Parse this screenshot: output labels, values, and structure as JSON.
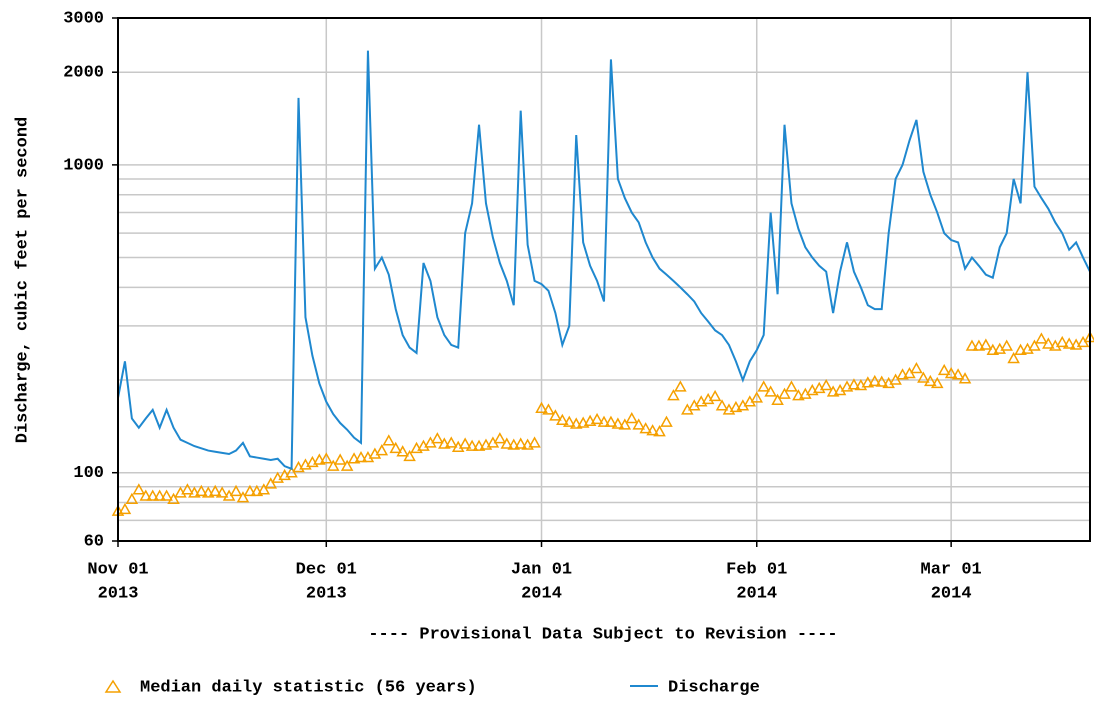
{
  "chart_data": {
    "type": "line",
    "y_label": "Discharge, cubic feet per second",
    "annotation": "---- Provisional Data Subject to Revision ----",
    "annotation_color": "#ff0000",
    "log_y": true,
    "grid": true,
    "legend": "bottom",
    "xlim": [
      "2013-11-01",
      "2014-03-21"
    ],
    "xticks": [
      {
        "value": "2013-11-01",
        "label": [
          "Nov 01",
          "2013"
        ]
      },
      {
        "value": "2013-12-01",
        "label": [
          "Dec 01",
          "2013"
        ]
      },
      {
        "value": "2014-01-01",
        "label": [
          "Jan 01",
          "2014"
        ]
      },
      {
        "value": "2014-02-01",
        "label": [
          "Feb 01",
          "2014"
        ]
      },
      {
        "value": "2014-03-01",
        "label": [
          "Mar 01",
          "2014"
        ]
      }
    ],
    "ylim": [
      60,
      3000
    ],
    "yticks": [
      60,
      100,
      1000,
      2000,
      3000
    ],
    "y_minor_gridlines": [
      70,
      80,
      90,
      200,
      300,
      400,
      500,
      600,
      700,
      800,
      900
    ],
    "x": [
      "2013-11-01",
      "2013-11-02",
      "2013-11-03",
      "2013-11-04",
      "2013-11-05",
      "2013-11-06",
      "2013-11-07",
      "2013-11-08",
      "2013-11-09",
      "2013-11-10",
      "2013-11-11",
      "2013-11-12",
      "2013-11-13",
      "2013-11-14",
      "2013-11-15",
      "2013-11-16",
      "2013-11-17",
      "2013-11-18",
      "2013-11-19",
      "2013-11-20",
      "2013-11-21",
      "2013-11-22",
      "2013-11-23",
      "2013-11-24",
      "2013-11-25",
      "2013-11-26",
      "2013-11-27",
      "2013-11-28",
      "2013-11-29",
      "2013-11-30",
      "2013-12-01",
      "2013-12-02",
      "2013-12-03",
      "2013-12-04",
      "2013-12-05",
      "2013-12-06",
      "2013-12-07",
      "2013-12-08",
      "2013-12-09",
      "2013-12-10",
      "2013-12-11",
      "2013-12-12",
      "2013-12-13",
      "2013-12-14",
      "2013-12-15",
      "2013-12-16",
      "2013-12-17",
      "2013-12-18",
      "2013-12-19",
      "2013-12-20",
      "2013-12-21",
      "2013-12-22",
      "2013-12-23",
      "2013-12-24",
      "2013-12-25",
      "2013-12-26",
      "2013-12-27",
      "2013-12-28",
      "2013-12-29",
      "2013-12-30",
      "2013-12-31",
      "2014-01-01",
      "2014-01-02",
      "2014-01-03",
      "2014-01-04",
      "2014-01-05",
      "2014-01-06",
      "2014-01-07",
      "2014-01-08",
      "2014-01-09",
      "2014-01-10",
      "2014-01-11",
      "2014-01-12",
      "2014-01-13",
      "2014-01-14",
      "2014-01-15",
      "2014-01-16",
      "2014-01-17",
      "2014-01-18",
      "2014-01-19",
      "2014-01-20",
      "2014-01-21",
      "2014-01-22",
      "2014-01-23",
      "2014-01-24",
      "2014-01-25",
      "2014-01-26",
      "2014-01-27",
      "2014-01-28",
      "2014-01-29",
      "2014-01-30",
      "2014-01-31",
      "2014-02-01",
      "2014-02-02",
      "2014-02-03",
      "2014-02-04",
      "2014-02-05",
      "2014-02-06",
      "2014-02-07",
      "2014-02-08",
      "2014-02-09",
      "2014-02-10",
      "2014-02-11",
      "2014-02-12",
      "2014-02-13",
      "2014-02-14",
      "2014-02-15",
      "2014-02-16",
      "2014-02-17",
      "2014-02-18",
      "2014-02-19",
      "2014-02-20",
      "2014-02-21",
      "2014-02-22",
      "2014-02-23",
      "2014-02-24",
      "2014-02-25",
      "2014-02-26",
      "2014-02-27",
      "2014-02-28",
      "2014-03-01",
      "2014-03-02",
      "2014-03-03",
      "2014-03-04",
      "2014-03-05",
      "2014-03-06",
      "2014-03-07",
      "2014-03-08",
      "2014-03-09",
      "2014-03-10",
      "2014-03-11",
      "2014-03-12",
      "2014-03-13",
      "2014-03-14",
      "2014-03-15",
      "2014-03-16",
      "2014-03-17",
      "2014-03-18",
      "2014-03-19",
      "2014-03-20",
      "2014-03-21"
    ],
    "series": [
      {
        "name": "Median daily statistic (56 years)",
        "color": "#f5a000",
        "marker": "triangle",
        "values": [
          75,
          76,
          82,
          88,
          84,
          84,
          84,
          84,
          82,
          86,
          88,
          86,
          87,
          86,
          87,
          86,
          84,
          87,
          83,
          87,
          87,
          88,
          92,
          96,
          98,
          100,
          104,
          106,
          108,
          110,
          111,
          105,
          110,
          105,
          111,
          112,
          112,
          115,
          118,
          127,
          120,
          117,
          113,
          120,
          122,
          125,
          129,
          124,
          125,
          121,
          124,
          122,
          122,
          123,
          125,
          129,
          124,
          123,
          124,
          123,
          125,
          162,
          160,
          153,
          148,
          146,
          144,
          145,
          147,
          149,
          146,
          146,
          144,
          143,
          150,
          143,
          139,
          137,
          136,
          146,
          178,
          190,
          160,
          165,
          170,
          173,
          177,
          165,
          160,
          163,
          165,
          170,
          175,
          190,
          183,
          172,
          180,
          190,
          178,
          180,
          185,
          188,
          192,
          183,
          185,
          190,
          193,
          192,
          196,
          198,
          197,
          195,
          200,
          208,
          210,
          218,
          203,
          198,
          195,
          215,
          210,
          208,
          202,
          258,
          258,
          260,
          250,
          252,
          258,
          235,
          250,
          252,
          258,
          272,
          262,
          258,
          265,
          262,
          260,
          265,
          275
        ]
      },
      {
        "name": "Discharge",
        "color": "#1f88cf",
        "marker": "line",
        "values": [
          175,
          230,
          150,
          140,
          150,
          160,
          140,
          160,
          140,
          128,
          125,
          122,
          120,
          118,
          117,
          116,
          115,
          118,
          125,
          113,
          112,
          111,
          110,
          111,
          105,
          103,
          1650,
          320,
          240,
          195,
          170,
          155,
          145,
          138,
          130,
          125,
          2350,
          460,
          500,
          440,
          340,
          280,
          255,
          245,
          480,
          420,
          320,
          280,
          260,
          255,
          600,
          750,
          1350,
          750,
          580,
          480,
          420,
          350,
          1500,
          550,
          420,
          410,
          390,
          330,
          260,
          300,
          1250,
          560,
          470,
          420,
          360,
          2200,
          900,
          780,
          700,
          650,
          560,
          500,
          460,
          440,
          420,
          400,
          380,
          360,
          330,
          310,
          290,
          280,
          260,
          230,
          200,
          230,
          250,
          280,
          700,
          380,
          1350,
          750,
          620,
          540,
          500,
          470,
          450,
          330,
          450,
          560,
          450,
          400,
          350,
          340,
          340,
          600,
          900,
          1000,
          1200,
          1400,
          950,
          800,
          700,
          600,
          570,
          560,
          460,
          500,
          470,
          440,
          430,
          540,
          600,
          900,
          750,
          2000,
          850,
          780,
          720,
          650,
          600,
          530,
          560,
          500,
          450
        ]
      }
    ]
  }
}
